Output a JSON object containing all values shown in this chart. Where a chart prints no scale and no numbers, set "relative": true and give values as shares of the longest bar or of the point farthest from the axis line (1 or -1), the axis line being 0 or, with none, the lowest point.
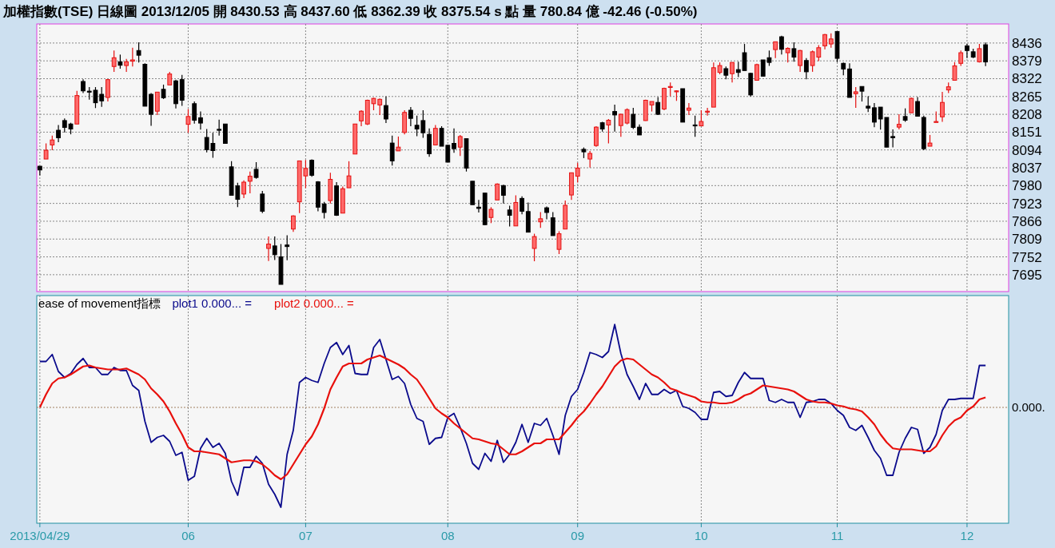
{
  "chart_data": [
    {
      "type": "candlestick",
      "title": "加權指數(TSE)   日線圖  2013/12/05  開 8430.53  高 8437.60  低 8362.39  收 8375.54  s 點  量 780.84 億  -42.46 (-0.50%)",
      "categories": [
        "2013/04/29",
        null,
        null,
        null,
        null,
        null,
        null,
        null,
        null,
        null,
        null,
        null,
        null,
        null,
        null,
        null,
        null,
        null,
        null,
        null,
        null,
        null,
        null,
        null,
        "06",
        null,
        null,
        null,
        null,
        null,
        null,
        null,
        null,
        null,
        null,
        null,
        null,
        null,
        null,
        null,
        null,
        null,
        null,
        "07",
        null,
        null,
        null,
        null,
        null,
        null,
        null,
        null,
        null,
        null,
        null,
        null,
        null,
        null,
        null,
        null,
        null,
        null,
        null,
        null,
        null,
        null,
        "08",
        null,
        null,
        null,
        null,
        null,
        null,
        null,
        null,
        null,
        null,
        null,
        null,
        null,
        null,
        null,
        null,
        null,
        null,
        null,
        null,
        "09",
        null,
        null,
        null,
        null,
        null,
        null,
        null,
        null,
        null,
        null,
        null,
        null,
        null,
        null,
        null,
        null,
        null,
        null,
        null,
        "10",
        null,
        null,
        null,
        null,
        null,
        null,
        null,
        null,
        null,
        null,
        null,
        null,
        null,
        null,
        null,
        null,
        null,
        null,
        null,
        null,
        null,
        "11",
        null,
        null,
        null,
        null,
        null,
        null,
        null,
        null,
        null,
        null,
        null,
        null,
        null,
        null,
        null,
        null,
        null,
        null,
        null,
        null,
        "12",
        null,
        null,
        null
      ],
      "ohlc": [
        [
          8042,
          8042,
          8013,
          8030
        ],
        [
          8065,
          8115,
          8065,
          8093
        ],
        [
          8110,
          8140,
          8093,
          8126
        ],
        [
          8157,
          8174,
          8119,
          8133
        ],
        [
          8188,
          8195,
          8150,
          8166
        ],
        [
          8177,
          8181,
          8144,
          8161
        ],
        [
          8177,
          8283,
          8177,
          8268
        ],
        [
          8313,
          8320,
          8276,
          8283
        ],
        [
          8282,
          8295,
          8255,
          8279
        ],
        [
          8285,
          8295,
          8228,
          8245
        ],
        [
          8272,
          8295,
          8232,
          8251
        ],
        [
          8262,
          8320,
          8249,
          8319
        ],
        [
          8361,
          8412,
          8344,
          8389
        ],
        [
          8376,
          8399,
          8354,
          8365
        ],
        [
          8364,
          8385,
          8344,
          8376
        ],
        [
          8378,
          8421,
          8361,
          8382
        ],
        [
          8412,
          8438,
          8374,
          8397
        ],
        [
          8368,
          8371,
          8234,
          8234
        ],
        [
          8272,
          8276,
          8171,
          8208
        ],
        [
          8218,
          8279,
          8206,
          8279
        ],
        [
          8288,
          8303,
          8257,
          8261
        ],
        [
          8302,
          8344,
          8302,
          8337
        ],
        [
          8315,
          8319,
          8227,
          8242
        ],
        [
          8319,
          8334,
          8235,
          8253
        ],
        [
          8176,
          8225,
          8149,
          8201
        ],
        [
          8242,
          8249,
          8178,
          8189
        ],
        [
          8197,
          8217,
          8159,
          8180
        ],
        [
          8134,
          8161,
          8086,
          8095
        ],
        [
          8115,
          8149,
          8069,
          8092
        ],
        [
          8160,
          8191,
          8140,
          8158
        ],
        [
          8177,
          8177,
          8115,
          8115
        ],
        [
          8040,
          8058,
          7949,
          7949
        ],
        [
          7979,
          7989,
          7911,
          7936
        ],
        [
          7953,
          7997,
          7940,
          7991
        ],
        [
          7994,
          8025,
          7955,
          8010
        ],
        [
          8032,
          8055,
          8002,
          8006
        ],
        [
          7953,
          7963,
          7892,
          7898
        ],
        [
          7779,
          7817,
          7739,
          7793
        ],
        [
          7787,
          7817,
          7742,
          7759
        ],
        [
          7752,
          7793,
          7664,
          7664
        ],
        [
          7790,
          7821,
          7741,
          7785
        ],
        [
          7841,
          7885,
          7832,
          7883
        ],
        [
          7928,
          8059,
          7892,
          8059
        ],
        [
          8011,
          8062,
          7972,
          8035
        ],
        [
          8061,
          8064,
          8008,
          8013
        ],
        [
          7992,
          7994,
          7898,
          7911
        ],
        [
          7921,
          7928,
          7875,
          7894
        ],
        [
          7932,
          8021,
          7923,
          8000
        ],
        [
          7979,
          7991,
          7883,
          7885
        ],
        [
          7892,
          7977,
          7892,
          7970
        ],
        [
          7973,
          8058,
          7973,
          8011
        ],
        [
          8081,
          8177,
          8081,
          8177
        ],
        [
          8187,
          8221,
          8170,
          8218
        ],
        [
          8177,
          8255,
          8174,
          8253
        ],
        [
          8242,
          8261,
          8221,
          8259
        ],
        [
          8238,
          8259,
          8206,
          8256
        ],
        [
          8236,
          8265,
          8180,
          8193
        ],
        [
          8116,
          8140,
          8044,
          8059
        ],
        [
          8091,
          8137,
          8091,
          8103
        ],
        [
          8150,
          8221,
          8144,
          8214
        ],
        [
          8221,
          8231,
          8170,
          8195
        ],
        [
          8173,
          8204,
          8138,
          8161
        ],
        [
          8188,
          8221,
          8133,
          8149
        ],
        [
          8144,
          8163,
          8072,
          8082
        ],
        [
          8110,
          8174,
          8110,
          8163
        ],
        [
          8163,
          8170,
          8106,
          8106
        ],
        [
          8109,
          8110,
          8055,
          8055
        ],
        [
          8115,
          8163,
          8085,
          8098
        ],
        [
          8103,
          8142,
          8075,
          8137
        ],
        [
          8130,
          8130,
          8025,
          8036
        ],
        [
          7994,
          7994,
          7919,
          7919
        ],
        [
          7911,
          7934,
          7894,
          7907
        ],
        [
          7956,
          7956,
          7853,
          7855
        ],
        [
          7878,
          7911,
          7860,
          7904
        ],
        [
          7934,
          7987,
          7934,
          7985
        ],
        [
          7980,
          7983,
          7923,
          7949
        ],
        [
          7902,
          7916,
          7849,
          7885
        ],
        [
          7851,
          7949,
          7851,
          7926
        ],
        [
          7939,
          7946,
          7888,
          7898
        ],
        [
          7897,
          7926,
          7830,
          7831
        ],
        [
          7779,
          7826,
          7738,
          7817
        ],
        [
          7864,
          7895,
          7845,
          7874
        ],
        [
          7909,
          7913,
          7872,
          7894
        ],
        [
          7877,
          7895,
          7820,
          7820
        ],
        [
          7776,
          7834,
          7761,
          7826
        ],
        [
          7841,
          7932,
          7841,
          7917
        ],
        [
          7950,
          8021,
          7934,
          8021
        ],
        [
          8010,
          8053,
          7990,
          8036
        ],
        [
          8096,
          8102,
          8068,
          8088
        ],
        [
          8065,
          8091,
          8038,
          8083
        ],
        [
          8108,
          8170,
          8104,
          8167
        ],
        [
          8181,
          8184,
          8153,
          8161
        ],
        [
          8174,
          8193,
          8115,
          8189
        ],
        [
          8217,
          8239,
          8153,
          8206
        ],
        [
          8172,
          8210,
          8136,
          8208
        ],
        [
          8180,
          8227,
          8176,
          8223
        ],
        [
          8208,
          8229,
          8161,
          8166
        ],
        [
          8167,
          8176,
          8142,
          8142
        ],
        [
          8188,
          8255,
          8187,
          8253
        ],
        [
          8238,
          8249,
          8217,
          8249
        ],
        [
          8246,
          8263,
          8206,
          8208
        ],
        [
          8225,
          8293,
          8221,
          8291
        ],
        [
          8295,
          8310,
          8266,
          8297
        ],
        [
          8280,
          8285,
          8251,
          8283
        ],
        [
          8290,
          8290,
          8183,
          8183
        ],
        [
          8221,
          8244,
          8206,
          8228
        ],
        [
          8174,
          8204,
          8136,
          8172
        ],
        [
          8171,
          8221,
          8171,
          8185
        ],
        [
          8215,
          8229,
          8204,
          8218
        ],
        [
          8231,
          8374,
          8231,
          8357
        ],
        [
          8342,
          8374,
          8336,
          8364
        ],
        [
          8354,
          8361,
          8320,
          8333
        ],
        [
          8338,
          8374,
          8310,
          8374
        ],
        [
          8351,
          8376,
          8327,
          8342
        ],
        [
          8405,
          8433,
          8348,
          8348
        ],
        [
          8339,
          8341,
          8265,
          8270
        ],
        [
          8317,
          8370,
          8317,
          8367
        ],
        [
          8382,
          8382,
          8330,
          8330
        ],
        [
          8389,
          8412,
          8363,
          8374
        ],
        [
          8415,
          8440,
          8388,
          8440
        ],
        [
          8456,
          8459,
          8399,
          8416
        ],
        [
          8405,
          8422,
          8374,
          8419
        ],
        [
          8418,
          8438,
          8376,
          8391
        ],
        [
          8364,
          8414,
          8344,
          8412
        ],
        [
          8380,
          8388,
          8320,
          8344
        ],
        [
          8364,
          8412,
          8344,
          8408
        ],
        [
          8391,
          8429,
          8378,
          8421
        ],
        [
          8427,
          8465,
          8416,
          8463
        ],
        [
          8433,
          8467,
          8421,
          8449
        ],
        [
          8473,
          8473,
          8375,
          8387
        ],
        [
          8371,
          8374,
          8333,
          8353
        ],
        [
          8353,
          8371,
          8262,
          8262
        ],
        [
          8274,
          8295,
          8229,
          8280
        ],
        [
          8297,
          8297,
          8249,
          8282
        ],
        [
          8234,
          8266,
          8215,
          8228
        ],
        [
          8229,
          8244,
          8167,
          8183
        ],
        [
          8231,
          8231,
          8159,
          8193
        ],
        [
          8198,
          8198,
          8103,
          8103
        ],
        [
          8137,
          8160,
          8102,
          8133
        ],
        [
          8167,
          8208,
          8160,
          8176
        ],
        [
          8201,
          8227,
          8184,
          8189
        ],
        [
          8213,
          8261,
          8213,
          8259
        ],
        [
          8249,
          8263,
          8202,
          8202
        ],
        [
          8198,
          8204,
          8093,
          8098
        ],
        [
          8106,
          8142,
          8106,
          8116
        ],
        [
          8183,
          8217,
          8183,
          8185
        ],
        [
          8200,
          8280,
          8184,
          8246
        ],
        [
          8286,
          8310,
          8276,
          8296
        ],
        [
          8317,
          8375,
          8317,
          8363
        ],
        [
          8371,
          8412,
          8363,
          8405
        ],
        [
          8427,
          8433,
          8388,
          8412
        ],
        [
          8408,
          8418,
          8388,
          8391
        ],
        [
          8376,
          8433,
          8374,
          8418
        ],
        [
          8430.53,
          8437.6,
          8362.39,
          8375.54
        ]
      ],
      "ylim": [
        7641,
        8497
      ],
      "yticks": [
        7695,
        7752,
        7809,
        7866,
        7923,
        7980,
        8037,
        8094,
        8151,
        8208,
        8265,
        8322,
        8379,
        8436
      ],
      "grid": true,
      "tick_labels": "y"
    },
    {
      "type": "line",
      "title": "ease of movement指標",
      "relative": true,
      "grid": true,
      "tick_labels": "x",
      "categories": [
        "2013/04/29",
        null,
        null,
        null,
        null,
        null,
        null,
        null,
        null,
        null,
        null,
        null,
        null,
        null,
        null,
        null,
        null,
        null,
        null,
        null,
        null,
        null,
        null,
        null,
        "06",
        null,
        null,
        null,
        null,
        null,
        null,
        null,
        null,
        null,
        null,
        null,
        null,
        null,
        null,
        null,
        null,
        null,
        null,
        "07",
        null,
        null,
        null,
        null,
        null,
        null,
        null,
        null,
        null,
        null,
        null,
        null,
        null,
        null,
        null,
        null,
        null,
        null,
        null,
        null,
        null,
        null,
        "08",
        null,
        null,
        null,
        null,
        null,
        null,
        null,
        null,
        null,
        null,
        null,
        null,
        null,
        null,
        null,
        null,
        null,
        null,
        null,
        null,
        "09",
        null,
        null,
        null,
        null,
        null,
        null,
        null,
        null,
        null,
        null,
        null,
        null,
        null,
        null,
        null,
        null,
        null,
        null,
        null,
        "10",
        null,
        null,
        null,
        null,
        null,
        null,
        null,
        null,
        null,
        null,
        null,
        null,
        null,
        null,
        null,
        null,
        null,
        null,
        null,
        null,
        null,
        "11",
        null,
        null,
        null,
        null,
        null,
        null,
        null,
        null,
        null,
        null,
        null,
        null,
        null,
        null,
        null,
        null,
        null,
        null,
        null,
        null,
        "12",
        null,
        null,
        null
      ],
      "series": [
        {
          "name": "plot1 0.000... =",
          "color": "#0a0a8c",
          "values": [
            0.46,
            0.46,
            0.53,
            0.36,
            0.3,
            0.34,
            0.43,
            0.49,
            0.4,
            0.4,
            0.33,
            0.33,
            0.4,
            0.37,
            0.37,
            0.22,
            0.17,
            -0.14,
            -0.35,
            -0.3,
            -0.28,
            -0.34,
            -0.48,
            -0.45,
            -0.73,
            -0.69,
            -0.41,
            -0.31,
            -0.4,
            -0.36,
            -0.46,
            -0.74,
            -0.88,
            -0.6,
            -0.6,
            -0.49,
            -0.56,
            -0.77,
            -0.87,
            -1,
            -0.47,
            -0.23,
            0.25,
            0.3,
            0.27,
            0.25,
            0.44,
            0.6,
            0.65,
            0.53,
            0.62,
            0.34,
            0.33,
            0.33,
            0.6,
            0.68,
            0.48,
            0.28,
            0.31,
            0.24,
            0.03,
            -0.11,
            -0.14,
            -0.37,
            -0.31,
            -0.3,
            -0.1,
            -0.06,
            -0.2,
            -0.36,
            -0.56,
            -0.62,
            -0.46,
            -0.54,
            -0.33,
            -0.55,
            -0.47,
            -0.35,
            -0.17,
            -0.35,
            -0.16,
            -0.18,
            -0.11,
            -0.28,
            -0.47,
            -0.08,
            0.11,
            0.18,
            0.35,
            0.55,
            0.53,
            0.5,
            0.56,
            0.83,
            0.54,
            0.33,
            0.21,
            0.08,
            0.24,
            0.13,
            0.13,
            0.18,
            0.14,
            0.17,
            0.01,
            -0.01,
            -0.05,
            -0.12,
            -0.12,
            0.15,
            0.16,
            0.11,
            0.12,
            0.25,
            0.35,
            0.29,
            0.29,
            0.29,
            0.07,
            0.05,
            0.08,
            0.05,
            0.05,
            -0.1,
            0.05,
            0.06,
            0.08,
            0.08,
            0.04,
            -0.03,
            -0.08,
            -0.2,
            -0.23,
            -0.18,
            -0.3,
            -0.43,
            -0.51,
            -0.68,
            -0.68,
            -0.45,
            -0.31,
            -0.2,
            -0.22,
            -0.46,
            -0.4,
            -0.27,
            -0.03,
            0.08,
            0.08,
            0.09,
            0.09,
            0.09,
            0.42,
            0.42
          ]
        },
        {
          "name": "plot2 0.000... =",
          "color": "#e8100c",
          "values": [
            0.0,
            0.13,
            0.24,
            0.29,
            0.3,
            0.33,
            0.37,
            0.41,
            0.42,
            0.4,
            0.39,
            0.38,
            0.38,
            0.38,
            0.39,
            0.36,
            0.33,
            0.28,
            0.19,
            0.13,
            0.06,
            -0.04,
            -0.16,
            -0.27,
            -0.4,
            -0.44,
            -0.44,
            -0.45,
            -0.46,
            -0.47,
            -0.51,
            -0.55,
            -0.54,
            -0.53,
            -0.53,
            -0.54,
            -0.57,
            -0.62,
            -0.68,
            -0.72,
            -0.67,
            -0.57,
            -0.47,
            -0.37,
            -0.29,
            -0.17,
            -0.01,
            0.18,
            0.3,
            0.41,
            0.44,
            0.44,
            0.44,
            0.48,
            0.5,
            0.52,
            0.49,
            0.46,
            0.43,
            0.39,
            0.33,
            0.28,
            0.19,
            0.09,
            -0.01,
            -0.06,
            -0.1,
            -0.16,
            -0.21,
            -0.26,
            -0.31,
            -0.32,
            -0.34,
            -0.36,
            -0.37,
            -0.42,
            -0.47,
            -0.47,
            -0.44,
            -0.4,
            -0.36,
            -0.36,
            -0.32,
            -0.32,
            -0.32,
            -0.25,
            -0.18,
            -0.1,
            -0.04,
            0.04,
            0.13,
            0.21,
            0.31,
            0.41,
            0.47,
            0.49,
            0.48,
            0.43,
            0.38,
            0.33,
            0.3,
            0.25,
            0.19,
            0.17,
            0.14,
            0.12,
            0.1,
            0.06,
            0.05,
            0.05,
            0.04,
            0.04,
            0.05,
            0.08,
            0.12,
            0.14,
            0.18,
            0.22,
            0.21,
            0.2,
            0.19,
            0.18,
            0.16,
            0.12,
            0.08,
            0.06,
            0.05,
            0.05,
            0.04,
            0.02,
            0.01,
            -0.01,
            -0.02,
            -0.04,
            -0.1,
            -0.17,
            -0.27,
            -0.35,
            -0.41,
            -0.42,
            -0.42,
            -0.42,
            -0.43,
            -0.44,
            -0.44,
            -0.39,
            -0.28,
            -0.19,
            -0.13,
            -0.1,
            -0.03,
            0.01,
            0.08,
            0.1
          ]
        }
      ],
      "ref_lines": [
        {
          "axis": "y",
          "value": 0,
          "label": "0.000."
        }
      ]
    }
  ]
}
